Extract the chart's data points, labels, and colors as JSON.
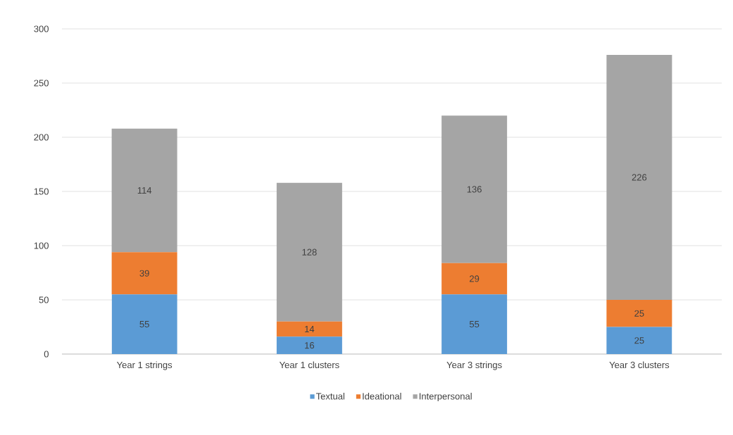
{
  "chart_data": {
    "type": "bar",
    "stacked": true,
    "categories": [
      "Year 1 strings",
      "Year 1 clusters",
      "Year 3 strings",
      "Year 3 clusters"
    ],
    "series": [
      {
        "name": "Textual",
        "color": "#5b9bd5",
        "values": [
          55,
          16,
          55,
          25
        ]
      },
      {
        "name": "Ideational",
        "color": "#ed7d31",
        "values": [
          39,
          14,
          29,
          25
        ]
      },
      {
        "name": "Interpersonal",
        "color": "#a5a5a5",
        "values": [
          114,
          128,
          136,
          226
        ]
      }
    ],
    "ylim": [
      0,
      300
    ],
    "yticks": [
      0,
      50,
      100,
      150,
      200,
      250,
      300
    ],
    "grid": "y",
    "legend": "bottom",
    "data_labels": true
  }
}
